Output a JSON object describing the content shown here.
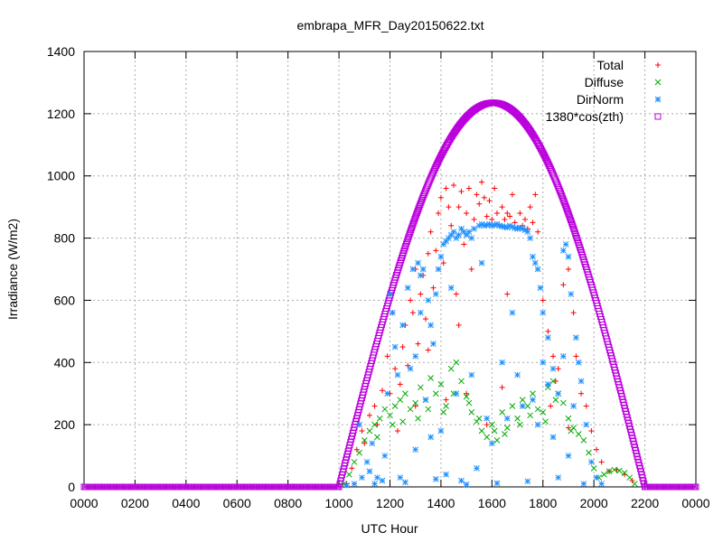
{
  "chart_data": {
    "type": "scatter",
    "title": "embrapa_MFR_Day20150622.txt",
    "xlabel": "UTC Hour",
    "ylabel": "Irradiance (W/m2)",
    "xlim": [
      0,
      24
    ],
    "ylim": [
      0,
      1400
    ],
    "x_tick_values": [
      0,
      2,
      4,
      6,
      8,
      10,
      12,
      14,
      16,
      18,
      20,
      22,
      24
    ],
    "x_tick_labels": [
      "0000",
      "0200",
      "0400",
      "0600",
      "0800",
      "1000",
      "1200",
      "1400",
      "1600",
      "1800",
      "2000",
      "2200",
      "0000"
    ],
    "y_ticks": [
      0,
      200,
      400,
      600,
      800,
      1000,
      1200,
      1400
    ],
    "grid": true,
    "legend_position": "top-right",
    "series": [
      {
        "name": "Total",
        "color": "#ff0000",
        "marker": "plus",
        "points": [
          [
            10.3,
            10
          ],
          [
            10.5,
            60
          ],
          [
            10.7,
            120
          ],
          [
            10.9,
            180
          ],
          [
            11.0,
            140
          ],
          [
            11.2,
            230
          ],
          [
            11.4,
            260
          ],
          [
            11.5,
            200
          ],
          [
            11.7,
            310
          ],
          [
            11.9,
            420
          ],
          [
            12.0,
            300
          ],
          [
            12.2,
            380
          ],
          [
            12.4,
            330
          ],
          [
            12.5,
            450
          ],
          [
            12.6,
            520
          ],
          [
            12.7,
            390
          ],
          [
            12.8,
            600
          ],
          [
            12.9,
            560
          ],
          [
            13.0,
            700
          ],
          [
            13.1,
            460
          ],
          [
            13.2,
            620
          ],
          [
            13.3,
            680
          ],
          [
            13.4,
            540
          ],
          [
            13.5,
            750
          ],
          [
            13.6,
            820
          ],
          [
            13.7,
            640
          ],
          [
            13.8,
            760
          ],
          [
            13.9,
            880
          ],
          [
            14.0,
            930
          ],
          [
            14.1,
            720
          ],
          [
            14.2,
            960
          ],
          [
            14.3,
            900
          ],
          [
            14.4,
            840
          ],
          [
            14.5,
            970
          ],
          [
            14.6,
            620
          ],
          [
            14.7,
            900
          ],
          [
            14.8,
            950
          ],
          [
            14.9,
            780
          ],
          [
            15.0,
            880
          ],
          [
            15.1,
            960
          ],
          [
            15.2,
            700
          ],
          [
            15.3,
            860
          ],
          [
            15.4,
            940
          ],
          [
            15.5,
            910
          ],
          [
            15.6,
            980
          ],
          [
            15.7,
            930
          ],
          [
            15.8,
            870
          ],
          [
            15.9,
            920
          ],
          [
            16.0,
            860
          ],
          [
            16.1,
            960
          ],
          [
            16.2,
            880
          ],
          [
            16.3,
            840
          ],
          [
            16.4,
            900
          ],
          [
            16.5,
            860
          ],
          [
            16.6,
            880
          ],
          [
            16.7,
            870
          ],
          [
            16.8,
            940
          ],
          [
            16.9,
            850
          ],
          [
            17.0,
            830
          ],
          [
            17.1,
            880
          ],
          [
            17.2,
            840
          ],
          [
            17.3,
            860
          ],
          [
            17.4,
            830
          ],
          [
            17.5,
            900
          ],
          [
            17.6,
            850
          ],
          [
            17.7,
            940
          ],
          [
            17.8,
            820
          ],
          [
            18.0,
            600
          ],
          [
            18.2,
            500
          ],
          [
            18.4,
            420
          ],
          [
            18.6,
            380
          ],
          [
            18.8,
            650
          ],
          [
            19.0,
            700
          ],
          [
            19.2,
            560
          ],
          [
            19.3,
            420
          ],
          [
            19.5,
            300
          ],
          [
            19.7,
            260
          ],
          [
            19.9,
            180
          ],
          [
            20.1,
            120
          ],
          [
            20.3,
            80
          ],
          [
            20.6,
            50
          ],
          [
            20.9,
            55
          ],
          [
            21.2,
            40
          ],
          [
            21.5,
            20
          ],
          [
            12.3,
            180
          ],
          [
            13.0,
            260
          ],
          [
            14.2,
            280
          ],
          [
            15.0,
            300
          ],
          [
            15.8,
            200
          ],
          [
            16.4,
            320
          ],
          [
            17.2,
            260
          ],
          [
            18.3,
            260
          ],
          [
            19.0,
            190
          ],
          [
            12.1,
            560
          ],
          [
            13.5,
            440
          ],
          [
            14.7,
            520
          ],
          [
            16.6,
            620
          ],
          [
            18.5,
            340
          ]
        ]
      },
      {
        "name": "Diffuse",
        "color": "#00aa00",
        "marker": "cross",
        "points": [
          [
            10.2,
            10
          ],
          [
            10.4,
            40
          ],
          [
            10.6,
            80
          ],
          [
            10.8,
            110
          ],
          [
            11.0,
            150
          ],
          [
            11.2,
            180
          ],
          [
            11.4,
            200
          ],
          [
            11.6,
            220
          ],
          [
            11.8,
            250
          ],
          [
            12.0,
            230
          ],
          [
            12.2,
            260
          ],
          [
            12.4,
            280
          ],
          [
            12.6,
            300
          ],
          [
            12.8,
            250
          ],
          [
            13.0,
            270
          ],
          [
            13.2,
            320
          ],
          [
            13.4,
            280
          ],
          [
            13.6,
            350
          ],
          [
            13.8,
            300
          ],
          [
            14.0,
            330
          ],
          [
            14.2,
            260
          ],
          [
            14.4,
            380
          ],
          [
            14.6,
            400
          ],
          [
            14.8,
            340
          ],
          [
            15.0,
            290
          ],
          [
            15.2,
            240
          ],
          [
            15.4,
            210
          ],
          [
            15.6,
            180
          ],
          [
            15.8,
            160
          ],
          [
            16.0,
            200
          ],
          [
            16.2,
            150
          ],
          [
            16.4,
            240
          ],
          [
            16.6,
            190
          ],
          [
            16.8,
            260
          ],
          [
            17.0,
            220
          ],
          [
            17.2,
            280
          ],
          [
            17.4,
            260
          ],
          [
            17.6,
            300
          ],
          [
            17.8,
            250
          ],
          [
            18.0,
            240
          ],
          [
            18.2,
            320
          ],
          [
            18.4,
            340
          ],
          [
            18.6,
            300
          ],
          [
            18.8,
            270
          ],
          [
            19.0,
            220
          ],
          [
            19.2,
            190
          ],
          [
            19.4,
            170
          ],
          [
            19.6,
            150
          ],
          [
            19.8,
            110
          ],
          [
            20.0,
            60
          ],
          [
            20.2,
            30
          ],
          [
            20.4,
            40
          ],
          [
            20.6,
            50
          ],
          [
            20.8,
            55
          ],
          [
            21.0,
            52
          ],
          [
            21.2,
            45
          ],
          [
            21.4,
            30
          ],
          [
            21.6,
            10
          ],
          [
            12.1,
            200
          ],
          [
            13.1,
            220
          ],
          [
            14.1,
            240
          ],
          [
            15.1,
            270
          ],
          [
            16.1,
            180
          ],
          [
            17.1,
            200
          ],
          [
            18.1,
            210
          ],
          [
            19.1,
            180
          ],
          [
            11.5,
            160
          ],
          [
            12.5,
            210
          ],
          [
            13.5,
            250
          ],
          [
            14.5,
            300
          ],
          [
            15.5,
            220
          ],
          [
            16.5,
            170
          ],
          [
            17.5,
            230
          ],
          [
            18.5,
            280
          ]
        ]
      },
      {
        "name": "DirNorm",
        "color": "#1e90ff",
        "marker": "star",
        "points": [
          [
            10.3,
            5
          ],
          [
            10.6,
            10
          ],
          [
            10.9,
            30
          ],
          [
            11.1,
            80
          ],
          [
            11.3,
            140
          ],
          [
            11.5,
            30
          ],
          [
            11.7,
            20
          ],
          [
            11.9,
            300
          ],
          [
            12.0,
            620
          ],
          [
            12.1,
            560
          ],
          [
            12.3,
            360
          ],
          [
            12.5,
            520
          ],
          [
            12.7,
            640
          ],
          [
            12.9,
            700
          ],
          [
            13.0,
            420
          ],
          [
            13.1,
            720
          ],
          [
            13.2,
            680
          ],
          [
            13.3,
            700
          ],
          [
            13.5,
            600
          ],
          [
            13.6,
            520
          ],
          [
            13.7,
            460
          ],
          [
            13.8,
            620
          ],
          [
            13.9,
            700
          ],
          [
            14.0,
            740
          ],
          [
            14.1,
            780
          ],
          [
            14.2,
            790
          ],
          [
            14.3,
            800
          ],
          [
            14.4,
            810
          ],
          [
            14.5,
            820
          ],
          [
            14.6,
            800
          ],
          [
            14.7,
            810
          ],
          [
            14.8,
            830
          ],
          [
            14.9,
            820
          ],
          [
            15.0,
            810
          ],
          [
            15.1,
            820
          ],
          [
            15.2,
            800
          ],
          [
            15.3,
            830
          ],
          [
            15.5,
            840
          ],
          [
            15.6,
            845
          ],
          [
            15.7,
            840
          ],
          [
            15.8,
            842
          ],
          [
            15.9,
            845
          ],
          [
            16.0,
            840
          ],
          [
            16.1,
            842
          ],
          [
            16.2,
            845
          ],
          [
            16.3,
            840
          ],
          [
            16.4,
            838
          ],
          [
            16.5,
            836
          ],
          [
            16.6,
            834
          ],
          [
            16.7,
            840
          ],
          [
            16.8,
            836
          ],
          [
            16.9,
            832
          ],
          [
            17.0,
            830
          ],
          [
            17.1,
            834
          ],
          [
            17.2,
            830
          ],
          [
            17.3,
            826
          ],
          [
            17.4,
            820
          ],
          [
            17.5,
            800
          ],
          [
            17.6,
            740
          ],
          [
            17.7,
            720
          ],
          [
            17.8,
            700
          ],
          [
            17.9,
            640
          ],
          [
            18.0,
            560
          ],
          [
            18.2,
            480
          ],
          [
            18.4,
            380
          ],
          [
            18.6,
            300
          ],
          [
            18.8,
            760
          ],
          [
            18.9,
            780
          ],
          [
            19.0,
            740
          ],
          [
            19.1,
            620
          ],
          [
            19.3,
            480
          ],
          [
            19.5,
            340
          ],
          [
            19.7,
            200
          ],
          [
            19.9,
            80
          ],
          [
            20.1,
            30
          ],
          [
            20.3,
            10
          ],
          [
            10.8,
            200
          ],
          [
            11.2,
            50
          ],
          [
            11.8,
            100
          ],
          [
            12.4,
            30
          ],
          [
            13.0,
            120
          ],
          [
            13.6,
            160
          ],
          [
            14.2,
            40
          ],
          [
            14.8,
            20
          ],
          [
            15.4,
            60
          ],
          [
            16.0,
            140
          ],
          [
            16.6,
            220
          ],
          [
            17.2,
            260
          ],
          [
            17.8,
            200
          ],
          [
            18.4,
            160
          ],
          [
            19.0,
            100
          ],
          [
            12.2,
            450
          ],
          [
            12.8,
            380
          ],
          [
            13.4,
            280
          ],
          [
            14.0,
            180
          ],
          [
            14.6,
            300
          ],
          [
            15.2,
            360
          ],
          [
            15.8,
            220
          ],
          [
            16.4,
            400
          ],
          [
            17.0,
            360
          ],
          [
            17.6,
            280
          ],
          [
            18.2,
            330
          ],
          [
            18.8,
            420
          ],
          [
            19.4,
            400
          ],
          [
            11.4,
            10
          ],
          [
            12.6,
            15
          ],
          [
            13.8,
            25
          ],
          [
            15.0,
            8
          ],
          [
            16.2,
            12
          ],
          [
            17.4,
            18
          ],
          [
            18.6,
            30
          ],
          [
            19.6,
            10
          ],
          [
            13.2,
            560
          ],
          [
            14.4,
            640
          ],
          [
            15.6,
            720
          ],
          [
            16.8,
            560
          ],
          [
            18.0,
            400
          ],
          [
            19.2,
            260
          ]
        ]
      },
      {
        "name": "1380*cos(zth)",
        "color": "#bb00dd",
        "marker": "square",
        "curve": {
          "start": 10.0,
          "end": 22.0,
          "peak_x": 16.05,
          "peak_y": 1235
        }
      }
    ]
  }
}
